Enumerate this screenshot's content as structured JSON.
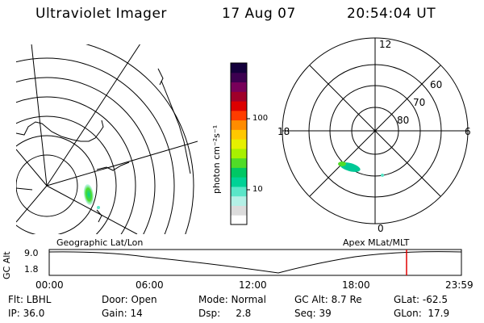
{
  "header": {
    "instrument": "Ultraviolet Imager",
    "date": "17 Aug 07",
    "time": "20:54:04 UT"
  },
  "colorbar": {
    "unit_label": "photon cm⁻²s⁻¹",
    "ticks": [
      "100",
      "10"
    ],
    "colors": [
      "#ffffff",
      "#dcdcdc",
      "#b4f0e6",
      "#5ae6c8",
      "#00d296",
      "#00c864",
      "#50dc28",
      "#a8f000",
      "#e6f000",
      "#ffc800",
      "#ff8c00",
      "#ff3c00",
      "#dc0000",
      "#a0002a",
      "#78005a",
      "#3c0050",
      "#14003c"
    ]
  },
  "polar_plot": {
    "labels": {
      "top": "12",
      "left": "18",
      "right": "6",
      "bottom": "0"
    },
    "rings": [
      "60",
      "70",
      "80"
    ]
  },
  "captions": {
    "left": "Geographic Lat/Lon",
    "right": "Apex MLat/MLT"
  },
  "timeline": {
    "axis_label": "GC Alt",
    "y_ticks": [
      "9.0",
      "1.8"
    ],
    "x_ticks": [
      "00:00",
      "06:00",
      "12:00",
      "18:00",
      "23:59"
    ],
    "marker_color": "#e00000"
  },
  "footer": {
    "row1": {
      "filter": "Flt: LBHL",
      "door": "Door: Open",
      "mode": "Mode: Normal",
      "gc_alt": "GC Alt: 8.7 Re",
      "glat": "GLat: -62.5"
    },
    "row2": {
      "ip": "IP: 36.0",
      "gain": "Gain: 14",
      "dsp": "Dsp:     2.8",
      "seq": "Seq: 39",
      "glon": "GLon:  17.9"
    }
  }
}
